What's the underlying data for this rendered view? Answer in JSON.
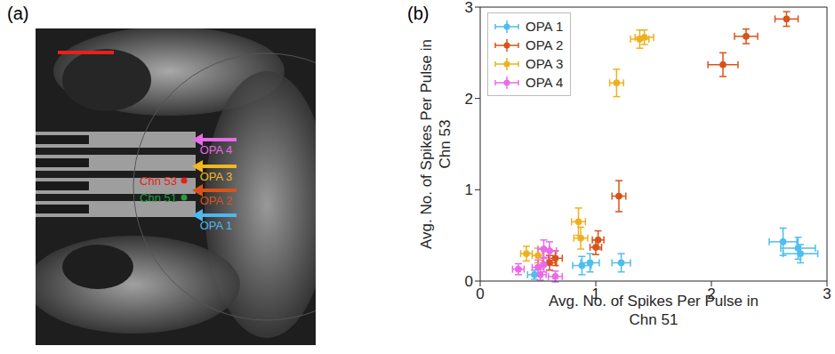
{
  "image_panel": {
    "label": "(a)",
    "channels": [
      {
        "name": "Chn 53",
        "color": "#e8211b"
      },
      {
        "name": "Chn 51",
        "color": "#1f9e3f"
      }
    ],
    "arrows": [
      {
        "name": "OPA 4",
        "color": "#e86be8"
      },
      {
        "name": "OPA 3",
        "color": "#f2b81f"
      },
      {
        "name": "OPA 2",
        "color": "#d95319"
      },
      {
        "name": "OPA 1",
        "color": "#4db8ee"
      }
    ]
  },
  "chart_data": {
    "type": "scatter",
    "panel_label": "(b)",
    "x_label": "Avg. No. of Spikes Per Pulse in Chn 51",
    "y_label": "Avg. No. of Spikes Per Pulse in Chn 53",
    "xlim": [
      0,
      3
    ],
    "ylim": [
      0,
      3
    ],
    "xticks": [
      0,
      1,
      2,
      3
    ],
    "yticks": [
      0,
      1,
      2,
      3
    ],
    "legend": "upper left",
    "series": [
      {
        "name": "OPA 1",
        "color": "#4dbeee",
        "marker": "circle",
        "x": [
          0.47,
          0.88,
          0.95,
          1.22,
          2.62,
          2.75,
          2.77
        ],
        "y": [
          0.07,
          0.17,
          0.2,
          0.2,
          0.43,
          0.36,
          0.3
        ],
        "x_err": [
          0.06,
          0.08,
          0.08,
          0.08,
          0.12,
          0.15,
          0.15
        ],
        "y_err": [
          0.05,
          0.1,
          0.1,
          0.1,
          0.15,
          0.12,
          0.1
        ]
      },
      {
        "name": "OPA 2",
        "color": "#d95319",
        "marker": "circle",
        "x": [
          0.6,
          0.65,
          1.0,
          1.02,
          1.2,
          2.1,
          2.3,
          2.65
        ],
        "y": [
          0.2,
          0.25,
          0.37,
          0.45,
          0.93,
          2.37,
          2.68,
          2.87
        ],
        "x_err": [
          0.06,
          0.06,
          0.05,
          0.05,
          0.06,
          0.13,
          0.1,
          0.1
        ],
        "y_err": [
          0.08,
          0.08,
          0.08,
          0.1,
          0.17,
          0.13,
          0.08,
          0.08
        ]
      },
      {
        "name": "OPA 3",
        "color": "#edb120",
        "marker": "circle",
        "x": [
          0.4,
          0.5,
          0.85,
          0.87,
          1.18,
          1.38,
          1.42
        ],
        "y": [
          0.3,
          0.28,
          0.65,
          0.47,
          2.17,
          2.65,
          2.67
        ],
        "x_err": [
          0.05,
          0.05,
          0.06,
          0.06,
          0.06,
          0.08,
          0.08
        ],
        "y_err": [
          0.08,
          0.08,
          0.15,
          0.12,
          0.15,
          0.1,
          0.08
        ]
      },
      {
        "name": "OPA 4",
        "color": "#e86be8",
        "marker": "circle",
        "x": [
          0.33,
          0.5,
          0.52,
          0.55,
          0.55,
          0.6,
          0.65
        ],
        "y": [
          0.13,
          0.15,
          0.07,
          0.35,
          0.18,
          0.33,
          0.05
        ],
        "x_err": [
          0.05,
          0.05,
          0.05,
          0.05,
          0.05,
          0.06,
          0.06
        ],
        "y_err": [
          0.06,
          0.08,
          0.06,
          0.1,
          0.08,
          0.1,
          0.06
        ]
      }
    ]
  }
}
